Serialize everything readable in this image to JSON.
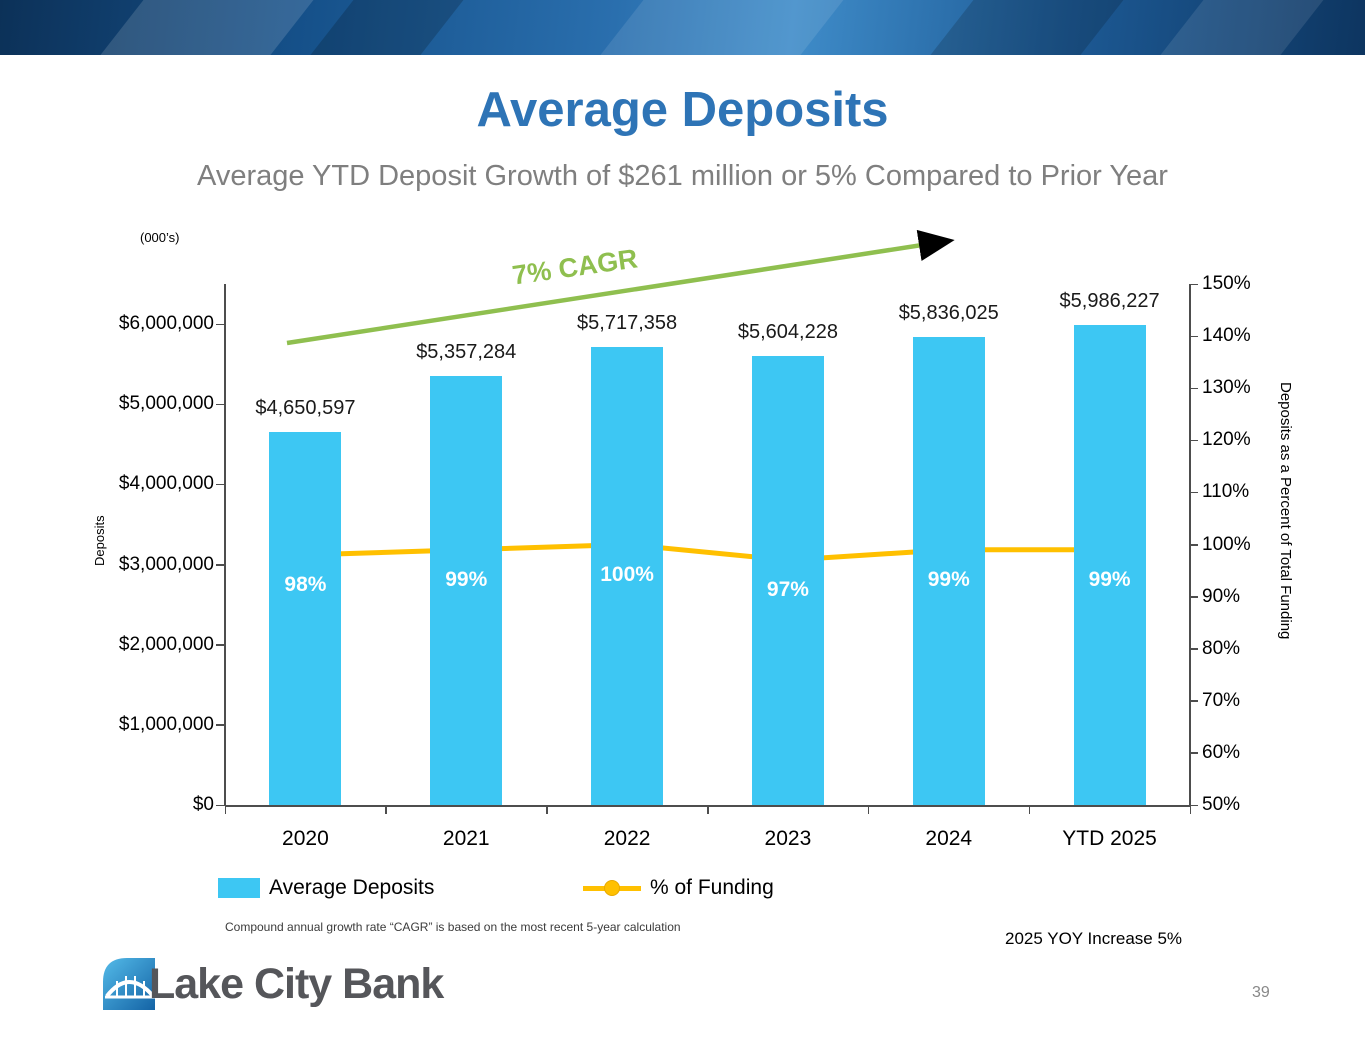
{
  "slide": {
    "title": "Average Deposits",
    "subtitle": "Average YTD Deposit Growth of $261 million or 5% Compared to Prior Year",
    "footnote": "Compound annual growth rate “CAGR” is based on the most recent 5-year calculation",
    "yoy_note": "2025 YOY Increase 5%",
    "page_number": "39",
    "logo_text": "Lake City Bank",
    "title_color": "#2E74B6",
    "subtitle_color": "#7F7F7F"
  },
  "chart_data": {
    "type": "bar",
    "subtype": "bar+line combo",
    "units_label": "(000’s)",
    "categories": [
      "2020",
      "2021",
      "2022",
      "2023",
      "2024",
      "YTD 2025"
    ],
    "series": [
      {
        "name": "Average Deposits",
        "type": "bar",
        "axis": "left",
        "color": "#3DC7F3",
        "values": [
          4650597,
          5357284,
          5717358,
          5604228,
          5836025,
          5986227
        ],
        "labels": [
          "$4,650,597",
          "$5,357,284",
          "$5,717,358",
          "$5,604,228",
          "$5,836,025",
          "$5,986,227"
        ]
      },
      {
        "name": "% of Funding",
        "type": "line",
        "axis": "right",
        "color": "#FFC000",
        "values": [
          98,
          99,
          100,
          97,
          99,
          99
        ],
        "labels": [
          "98%",
          "99%",
          "100%",
          "97%",
          "99%",
          "99%"
        ]
      }
    ],
    "left_axis": {
      "title": "Deposits",
      "min": 0,
      "max": 6000000,
      "tick_values": [
        0,
        1000000,
        2000000,
        3000000,
        4000000,
        5000000,
        6000000
      ],
      "tick_labels": [
        "$0",
        "$1,000,000",
        "$2,000,000",
        "$3,000,000",
        "$4,000,000",
        "$5,000,000",
        "$6,000,000"
      ]
    },
    "right_axis": {
      "title": "Deposits as a Percent of Total Funding",
      "min": 50,
      "max": 150,
      "tick_values": [
        50,
        60,
        70,
        80,
        90,
        100,
        110,
        120,
        130,
        140,
        150
      ],
      "tick_labels": [
        "50%",
        "60%",
        "70%",
        "80%",
        "90%",
        "100%",
        "110%",
        "120%",
        "130%",
        "140%",
        "150%"
      ]
    },
    "annotation": {
      "text": "7% CAGR",
      "color": "#8FBF4F"
    },
    "legend": [
      {
        "label": "Average Deposits",
        "swatch": "bar"
      },
      {
        "label": "% of Funding",
        "swatch": "line"
      }
    ],
    "grid": false,
    "legend_position": "bottom"
  }
}
